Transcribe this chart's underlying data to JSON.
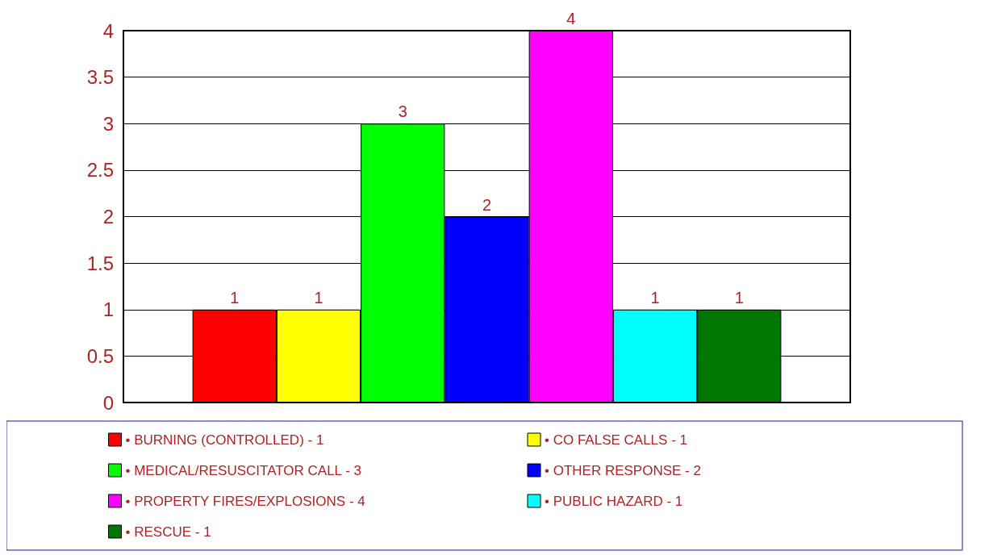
{
  "chart_data": {
    "type": "bar",
    "categories": [
      null
    ],
    "series": [
      {
        "name": "• BURNING (CONTROLLED) - 1",
        "color": "#ff0000",
        "values": [
          1
        ]
      },
      {
        "name": "• CO FALSE CALLS - 1",
        "color": "#ffff00",
        "values": [
          1
        ]
      },
      {
        "name": "• MEDICAL/RESUSCITATOR CALL - 3",
        "color": "#00ff00",
        "values": [
          3
        ]
      },
      {
        "name": "• OTHER RESPONSE - 2",
        "color": "#0000ff",
        "values": [
          2
        ]
      },
      {
        "name": "• PROPERTY FIRES/EXPLOSIONS - 4",
        "color": "#ff00ff",
        "values": [
          4
        ]
      },
      {
        "name": "• PUBLIC HAZARD - 1",
        "color": "#00ffff",
        "values": [
          1
        ]
      },
      {
        "name": "• RESCUE - 1",
        "color": "#007700",
        "values": [
          1
        ]
      }
    ],
    "ylim": [
      0,
      4
    ],
    "yticks": [
      0,
      0.5,
      1,
      1.5,
      2,
      2.5,
      3,
      3.5,
      4
    ],
    "grid": "y",
    "data_labels": true,
    "legend": "bottom"
  }
}
